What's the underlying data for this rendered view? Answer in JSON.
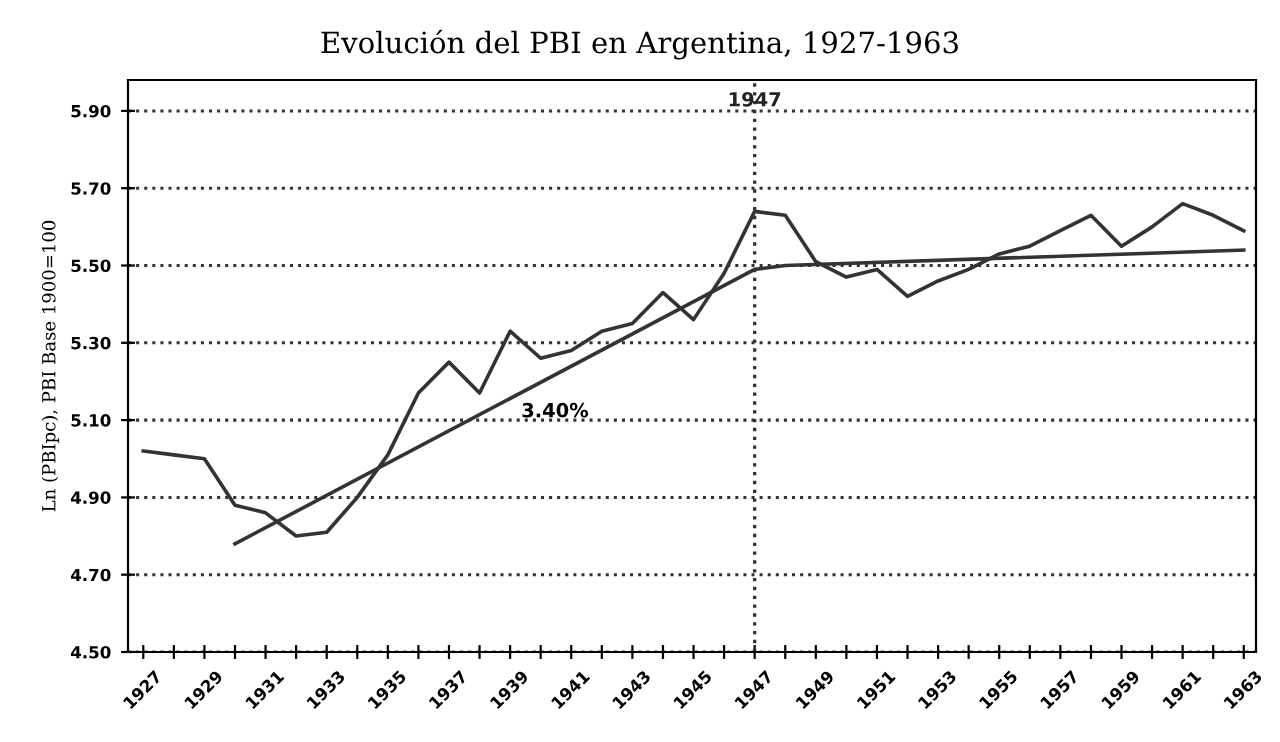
{
  "chart_data": {
    "type": "line",
    "title": "Evolución del PBI en Argentina, 1927-1963",
    "ylabel": "Ln (PBIpc), PBI Base 1900=100",
    "series": [
      {
        "color": "#333333",
        "x": [
          1927,
          1928,
          1929,
          1930,
          1931,
          1932,
          1933,
          1934,
          1935,
          1936,
          1937,
          1938,
          1939,
          1940,
          1941,
          1942,
          1943,
          1944,
          1945,
          1946,
          1947,
          1948,
          1949,
          1950,
          1951,
          1952,
          1953,
          1954,
          1955,
          1956,
          1957,
          1958,
          1959,
          1960,
          1961,
          1962,
          1963
        ],
        "values": [
          5.02,
          5.01,
          5.0,
          4.88,
          4.86,
          4.8,
          4.81,
          4.9,
          5.01,
          5.17,
          5.25,
          5.17,
          5.33,
          5.26,
          5.28,
          5.33,
          5.35,
          5.43,
          5.36,
          5.48,
          5.64,
          5.63,
          5.51,
          5.47,
          5.49,
          5.42,
          5.46,
          5.49,
          5.53,
          5.55,
          5.59,
          5.63,
          5.55,
          5.6,
          5.66,
          5.63,
          5.59
        ]
      },
      {
        "color": "#333333",
        "x": [
          1930,
          1947,
          1948,
          1963
        ],
        "values": [
          4.78,
          5.49,
          5.5,
          5.54
        ]
      }
    ],
    "annotations": [
      {
        "text": "3.40%",
        "x": 1939,
        "y": 5.16
      }
    ],
    "ref_lines": [
      {
        "axis": "x",
        "value": 1947,
        "label": "1947",
        "line_style": "dotted",
        "color": "#333333"
      }
    ],
    "xlim": [
      1926.5,
      1963.4
    ],
    "ylim": [
      4.5,
      5.98
    ],
    "xticks": [
      1927,
      {
        "value": 1928,
        "label": null
      },
      1929,
      {
        "value": 1930,
        "label": null
      },
      1931,
      {
        "value": 1932,
        "label": null
      },
      1933,
      {
        "value": 1934,
        "label": null
      },
      1935,
      {
        "value": 1936,
        "label": null
      },
      1937,
      {
        "value": 1938,
        "label": null
      },
      1939,
      {
        "value": 1940,
        "label": null
      },
      1941,
      {
        "value": 1942,
        "label": null
      },
      1943,
      {
        "value": 1944,
        "label": null
      },
      1945,
      {
        "value": 1946,
        "label": null
      },
      1947,
      {
        "value": 1948,
        "label": null
      },
      1949,
      {
        "value": 1950,
        "label": null
      },
      1951,
      {
        "value": 1952,
        "label": null
      },
      1953,
      {
        "value": 1954,
        "label": null
      },
      1955,
      {
        "value": 1956,
        "label": null
      },
      1957,
      {
        "value": 1958,
        "label": null
      },
      1959,
      {
        "value": 1960,
        "label": null
      },
      1961,
      {
        "value": 1962,
        "label": null
      },
      1963
    ],
    "yticks": [
      {
        "value": 4.5,
        "label": "4.50"
      },
      {
        "value": 4.7,
        "label": "4.70"
      },
      {
        "value": 4.9,
        "label": "4.90"
      },
      {
        "value": 5.1,
        "label": "5.10"
      },
      {
        "value": 5.3,
        "label": "5.30"
      },
      {
        "value": 5.5,
        "label": "5.50"
      },
      {
        "value": 5.7,
        "label": "5.70"
      },
      {
        "value": 5.9,
        "label": "5.90"
      }
    ],
    "grid": "y",
    "marker": "none",
    "line_style": "solid",
    "legend": false
  }
}
